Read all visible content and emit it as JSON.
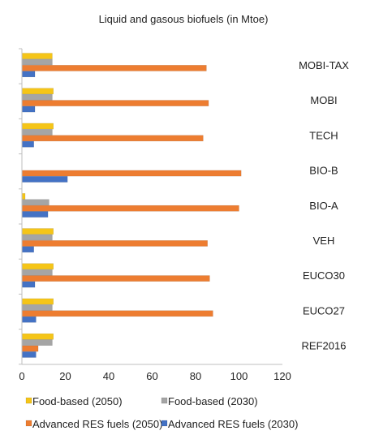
{
  "chart_data": {
    "type": "bar",
    "orientation": "horizontal",
    "title": "Liquid and gasous biofuels (in Mtoe)",
    "xlabel": "",
    "ylabel": "",
    "xlim": [
      0,
      120
    ],
    "x_ticks": [
      0,
      20,
      40,
      60,
      80,
      100,
      120
    ],
    "grid": false,
    "legend_position": "bottom",
    "categories": [
      "MOBI-TAX",
      "MOBI",
      "TECH",
      "BIO-B",
      "BIO-A",
      "VEH",
      "EUCO30",
      "EUCO27",
      "REF2016"
    ],
    "series": [
      {
        "name": "Food-based (2050)",
        "color": "#F5C518",
        "values": [
          14,
          14.5,
          14.5,
          0,
          1.5,
          14.5,
          14.5,
          14.5,
          14.5
        ]
      },
      {
        "name": "Food-based (2030)",
        "color": "#A5A5A5",
        "values": [
          14,
          14,
          14,
          0,
          12.5,
          14,
          14,
          14,
          14
        ]
      },
      {
        "name": "Advanced RES fuels (2050)",
        "color": "#ED7D31",
        "values": [
          85,
          86,
          83.5,
          101,
          100,
          85.5,
          86.5,
          88,
          7.5
        ]
      },
      {
        "name": "Advanced RES fuels (2030)",
        "color": "#4472C4",
        "values": [
          6,
          6,
          5.5,
          21,
          12,
          5.5,
          6,
          6.5,
          6.5
        ]
      }
    ]
  }
}
